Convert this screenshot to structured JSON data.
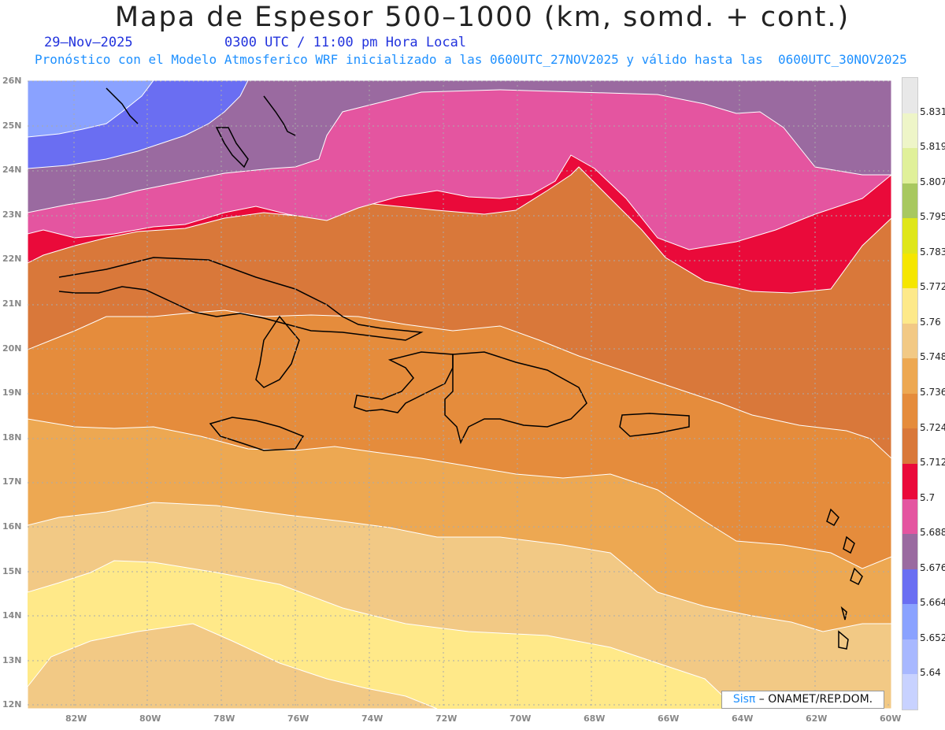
{
  "header": {
    "title": "Mapa de Espesor 500–1000 (km, somd. + cont.)",
    "date": "29–Nov–2025",
    "time": "0300 UTC / 11:00 pm Hora Local",
    "subtitle": "Pronóstico con el Modelo Atmosferico WRF inicializado a las 0600UTC_27NOV2025 y válido hasta las  0600UTC_30NOV2025"
  },
  "axes": {
    "lat_labels": [
      "26N",
      "25N",
      "24N",
      "23N",
      "22N",
      "21N",
      "20N",
      "19N",
      "18N",
      "17N",
      "16N",
      "15N",
      "14N",
      "13N",
      "12N"
    ],
    "lon_labels": [
      "82W",
      "80W",
      "78W",
      "76W",
      "74W",
      "72W",
      "70W",
      "68W",
      "66W",
      "64W",
      "62W",
      "60W"
    ]
  },
  "colorbar": {
    "labels": [
      "5.831",
      "5.819",
      "5.807",
      "5.795",
      "5.783",
      "5.772",
      "5.76",
      "5.748",
      "5.736",
      "5.724",
      "5.712",
      "5.7",
      "5.688",
      "5.676",
      "5.664",
      "5.652",
      "5.64"
    ],
    "colors": [
      "#e8e8e8",
      "#eef5c8",
      "#e0f09a",
      "#a8c860",
      "#dfe61a",
      "#f5e600",
      "#fde98a",
      "#f2c985",
      "#eda852",
      "#e58c3c",
      "#d9783a",
      "#ea0a3a",
      "#e455a0",
      "#9a6aa0",
      "#6a6ef2",
      "#8aa2ff",
      "#a8b8ff",
      "#c8d2ff"
    ]
  },
  "chart_data": {
    "type": "heatmap",
    "variable": "Espesor 500–1000",
    "unit": "km",
    "xlim_lon": [
      -83,
      -60
    ],
    "ylim_lat": [
      12,
      26
    ],
    "levels": [
      5.64,
      5.652,
      5.664,
      5.676,
      5.688,
      5.7,
      5.712,
      5.724,
      5.736,
      5.748,
      5.76,
      5.772
    ],
    "band_colors": [
      "#8aa2ff",
      "#6a6ef2",
      "#9a6aa0",
      "#e455a0",
      "#ea0a3a",
      "#d9783a",
      "#e58c3c",
      "#eda852",
      "#f2c985",
      "#fde98a",
      "#f5e600"
    ]
  },
  "credit": {
    "brand": "Sisπ",
    "text": " – ONAMET/REP.DOM."
  }
}
